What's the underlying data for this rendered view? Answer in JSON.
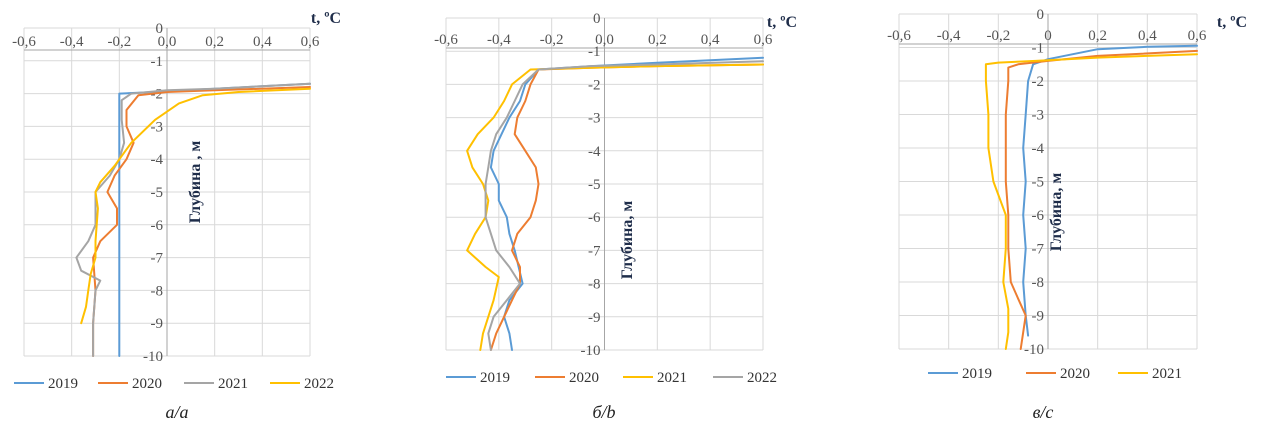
{
  "chart_data": [
    {
      "type": "line",
      "panel": "a",
      "caption": "а/a",
      "xlabel": "t, ºC",
      "ylabel": "Глубина , м",
      "xlim": [
        -0.6,
        0.6
      ],
      "ylim": [
        -10,
        0
      ],
      "x_ticks": [
        "-0,6",
        "-0,4",
        "-0,2",
        "0,0",
        "0,2",
        "0,4",
        "0,6"
      ],
      "y_ticks": [
        "0",
        "-1",
        "-2",
        "-3",
        "-4",
        "-5",
        "-6",
        "-7",
        "-8",
        "-9",
        "-10"
      ],
      "grid": true,
      "legend_position": "bottom",
      "series": [
        {
          "name": "2019",
          "color": "#5b9bd5",
          "points": [
            [
              0.6,
              -1.7
            ],
            [
              0.2,
              -1.85
            ],
            [
              -0.05,
              -1.95
            ],
            [
              -0.2,
              -2.0
            ],
            [
              -0.2,
              -3
            ],
            [
              -0.2,
              -5
            ],
            [
              -0.2,
              -7
            ],
            [
              -0.2,
              -10
            ]
          ]
        },
        {
          "name": "2020",
          "color": "#ed7d31",
          "points": [
            [
              0.6,
              -1.8
            ],
            [
              0.2,
              -1.9
            ],
            [
              0.0,
              -1.95
            ],
            [
              -0.12,
              -2.05
            ],
            [
              -0.17,
              -2.5
            ],
            [
              -0.17,
              -3.0
            ],
            [
              -0.14,
              -3.5
            ],
            [
              -0.17,
              -4.0
            ],
            [
              -0.22,
              -4.5
            ],
            [
              -0.25,
              -5.0
            ],
            [
              -0.21,
              -5.5
            ],
            [
              -0.21,
              -6.0
            ],
            [
              -0.28,
              -6.5
            ],
            [
              -0.31,
              -7.0
            ],
            [
              -0.3,
              -8
            ],
            [
              -0.31,
              -9
            ],
            [
              -0.31,
              -10
            ]
          ]
        },
        {
          "name": "2021",
          "color": "#a5a5a5",
          "points": [
            [
              0.6,
              -1.7
            ],
            [
              0.2,
              -1.85
            ],
            [
              0.0,
              -1.9
            ],
            [
              -0.15,
              -2.0
            ],
            [
              -0.19,
              -2.2
            ],
            [
              -0.19,
              -2.8
            ],
            [
              -0.18,
              -3.5
            ],
            [
              -0.2,
              -4.0
            ],
            [
              -0.24,
              -4.5
            ],
            [
              -0.3,
              -5.0
            ],
            [
              -0.3,
              -6.0
            ],
            [
              -0.33,
              -6.5
            ],
            [
              -0.38,
              -7.0
            ],
            [
              -0.36,
              -7.4
            ],
            [
              -0.28,
              -7.7
            ],
            [
              -0.3,
              -8.0
            ],
            [
              -0.31,
              -9.0
            ],
            [
              -0.31,
              -10
            ]
          ]
        },
        {
          "name": "2022",
          "color": "#ffc000",
          "points": [
            [
              0.6,
              -1.85
            ],
            [
              0.3,
              -1.95
            ],
            [
              0.15,
              -2.05
            ],
            [
              0.05,
              -2.3
            ],
            [
              -0.05,
              -2.8
            ],
            [
              -0.15,
              -3.5
            ],
            [
              -0.22,
              -4.2
            ],
            [
              -0.28,
              -4.7
            ],
            [
              -0.3,
              -5.0
            ],
            [
              -0.29,
              -5.5
            ],
            [
              -0.3,
              -6.5
            ],
            [
              -0.3,
              -7.0
            ],
            [
              -0.32,
              -7.5
            ],
            [
              -0.33,
              -8.0
            ],
            [
              -0.34,
              -8.5
            ],
            [
              -0.36,
              -9.0
            ]
          ]
        }
      ]
    },
    {
      "type": "line",
      "panel": "b",
      "caption": "б/b",
      "xlabel": "t, ºC",
      "ylabel": "Глубина, м",
      "xlim": [
        -0.6,
        0.6
      ],
      "ylim": [
        -10,
        0
      ],
      "x_ticks": [
        "-0,6",
        "-0,4",
        "-0,2",
        "0,0",
        "0,2",
        "0,4",
        "0,6"
      ],
      "y_ticks": [
        "0",
        "-1",
        "-2",
        "-3",
        "-4",
        "-5",
        "-6",
        "-7",
        "-8",
        "-9",
        "-10"
      ],
      "grid": true,
      "legend_position": "bottom",
      "series": [
        {
          "name": "2019",
          "color": "#5b9bd5",
          "points": [
            [
              0.6,
              -1.2
            ],
            [
              0.2,
              -1.35
            ],
            [
              -0.05,
              -1.45
            ],
            [
              -0.25,
              -1.55
            ],
            [
              -0.3,
              -2.0
            ],
            [
              -0.32,
              -2.5
            ],
            [
              -0.36,
              -3.0
            ],
            [
              -0.42,
              -4.0
            ],
            [
              -0.43,
              -4.5
            ],
            [
              -0.4,
              -5.0
            ],
            [
              -0.4,
              -5.5
            ],
            [
              -0.37,
              -6.0
            ],
            [
              -0.36,
              -6.5
            ],
            [
              -0.34,
              -7.0
            ],
            [
              -0.31,
              -8.0
            ],
            [
              -0.36,
              -8.5
            ],
            [
              -0.38,
              -9.0
            ],
            [
              -0.36,
              -9.5
            ],
            [
              -0.35,
              -10
            ]
          ]
        },
        {
          "name": "2020",
          "color": "#ed7d31",
          "points": [
            [
              0.6,
              -1.4
            ],
            [
              0.2,
              -1.45
            ],
            [
              -0.05,
              -1.5
            ],
            [
              -0.25,
              -1.55
            ],
            [
              -0.28,
              -2.0
            ],
            [
              -0.3,
              -2.5
            ],
            [
              -0.33,
              -3.0
            ],
            [
              -0.34,
              -3.5
            ],
            [
              -0.3,
              -4.0
            ],
            [
              -0.26,
              -4.5
            ],
            [
              -0.25,
              -5.0
            ],
            [
              -0.26,
              -5.5
            ],
            [
              -0.28,
              -6.0
            ],
            [
              -0.33,
              -6.5
            ],
            [
              -0.35,
              -7.0
            ],
            [
              -0.32,
              -7.5
            ],
            [
              -0.32,
              -8.0
            ],
            [
              -0.35,
              -8.5
            ],
            [
              -0.38,
              -9.0
            ],
            [
              -0.41,
              -9.5
            ],
            [
              -0.43,
              -10
            ]
          ]
        },
        {
          "name": "2021",
          "color": "#ffc000",
          "points": [
            [
              0.6,
              -1.4
            ],
            [
              0.2,
              -1.45
            ],
            [
              -0.05,
              -1.5
            ],
            [
              -0.28,
              -1.55
            ],
            [
              -0.35,
              -2.0
            ],
            [
              -0.38,
              -2.5
            ],
            [
              -0.42,
              -3.0
            ],
            [
              -0.48,
              -3.5
            ],
            [
              -0.52,
              -4.0
            ],
            [
              -0.5,
              -4.5
            ],
            [
              -0.46,
              -5.0
            ],
            [
              -0.44,
              -5.5
            ],
            [
              -0.45,
              -6.0
            ],
            [
              -0.49,
              -6.5
            ],
            [
              -0.52,
              -7.0
            ],
            [
              -0.45,
              -7.5
            ],
            [
              -0.4,
              -7.8
            ],
            [
              -0.42,
              -8.5
            ],
            [
              -0.46,
              -9.5
            ],
            [
              -0.47,
              -10
            ]
          ]
        },
        {
          "name": "2022",
          "color": "#a5a5a5",
          "points": [
            [
              0.6,
              -1.3
            ],
            [
              0.2,
              -1.4
            ],
            [
              -0.05,
              -1.45
            ],
            [
              -0.25,
              -1.55
            ],
            [
              -0.31,
              -2.0
            ],
            [
              -0.34,
              -2.5
            ],
            [
              -0.37,
              -3.0
            ],
            [
              -0.41,
              -3.5
            ],
            [
              -0.43,
              -4.0
            ],
            [
              -0.44,
              -4.5
            ],
            [
              -0.45,
              -5.0
            ],
            [
              -0.45,
              -6.0
            ],
            [
              -0.43,
              -6.5
            ],
            [
              -0.41,
              -7.0
            ],
            [
              -0.36,
              -7.5
            ],
            [
              -0.32,
              -8.0
            ],
            [
              -0.37,
              -8.5
            ],
            [
              -0.42,
              -9.0
            ],
            [
              -0.44,
              -9.5
            ],
            [
              -0.43,
              -10
            ]
          ]
        }
      ]
    },
    {
      "type": "line",
      "panel": "c",
      "caption": "в/c",
      "xlabel": "t, ºC",
      "ylabel": "Глубина, м",
      "xlim": [
        -0.6,
        0.6
      ],
      "ylim": [
        -10,
        0
      ],
      "x_ticks": [
        "-0,6",
        "-0,4",
        "-0,2",
        "0",
        "0,2",
        "0,4",
        "0,6"
      ],
      "y_ticks": [
        "0",
        "-1",
        "-2",
        "-3",
        "-4",
        "-5",
        "-6",
        "-7",
        "-8",
        "-9",
        "-10"
      ],
      "grid": true,
      "legend_position": "bottom",
      "series": [
        {
          "name": "2019",
          "color": "#5b9bd5",
          "points": [
            [
              0.6,
              -0.95
            ],
            [
              0.4,
              -0.98
            ],
            [
              0.2,
              -1.05
            ],
            [
              0.1,
              -1.2
            ],
            [
              0.0,
              -1.35
            ],
            [
              -0.06,
              -1.5
            ],
            [
              -0.08,
              -2.0
            ],
            [
              -0.09,
              -3.0
            ],
            [
              -0.1,
              -4.0
            ],
            [
              -0.09,
              -5.0
            ],
            [
              -0.1,
              -6.0
            ],
            [
              -0.09,
              -7.0
            ],
            [
              -0.1,
              -8.0
            ],
            [
              -0.09,
              -9.0
            ],
            [
              -0.08,
              -9.6
            ]
          ]
        },
        {
          "name": "2020",
          "color": "#ed7d31",
          "points": [
            [
              0.6,
              -1.1
            ],
            [
              0.2,
              -1.25
            ],
            [
              0.0,
              -1.4
            ],
            [
              -0.12,
              -1.5
            ],
            [
              -0.16,
              -1.6
            ],
            [
              -0.16,
              -2.0
            ],
            [
              -0.17,
              -3.0
            ],
            [
              -0.17,
              -4.0
            ],
            [
              -0.17,
              -5.0
            ],
            [
              -0.16,
              -6.0
            ],
            [
              -0.16,
              -7.0
            ],
            [
              -0.15,
              -8.0
            ],
            [
              -0.12,
              -8.5
            ],
            [
              -0.09,
              -9.0
            ],
            [
              -0.1,
              -9.5
            ],
            [
              -0.11,
              -10
            ]
          ]
        },
        {
          "name": "2021",
          "color": "#ffc000",
          "points": [
            [
              0.6,
              -1.2
            ],
            [
              0.2,
              -1.3
            ],
            [
              -0.05,
              -1.4
            ],
            [
              -0.2,
              -1.45
            ],
            [
              -0.25,
              -1.5
            ],
            [
              -0.25,
              -2.0
            ],
            [
              -0.24,
              -3.0
            ],
            [
              -0.24,
              -4.0
            ],
            [
              -0.22,
              -5.0
            ],
            [
              -0.17,
              -6.0
            ],
            [
              -0.17,
              -7.0
            ],
            [
              -0.18,
              -8.0
            ],
            [
              -0.16,
              -8.8
            ],
            [
              -0.16,
              -9.5
            ],
            [
              -0.17,
              -10
            ]
          ]
        }
      ]
    }
  ]
}
